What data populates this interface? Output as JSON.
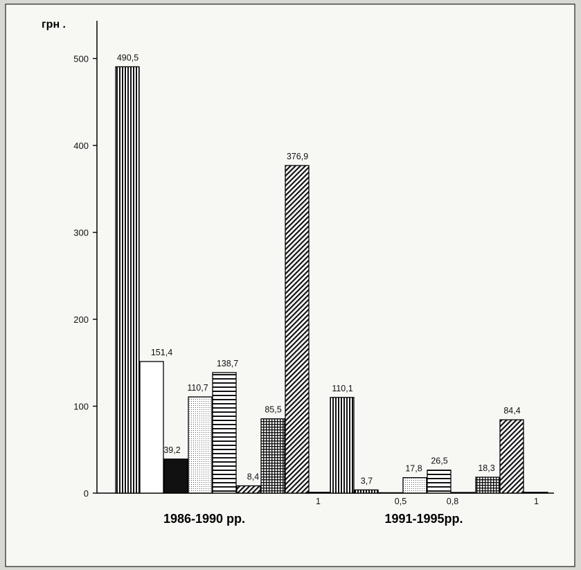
{
  "chart_data": {
    "type": "bar",
    "ylabel": "грн .",
    "ylim": [
      0,
      500
    ],
    "yticks": [
      "0",
      "100",
      "200",
      "300",
      "400",
      "500"
    ],
    "categories": [
      "1986-1990 рр.",
      "1991-1995рр."
    ],
    "groups": [
      {
        "category": "1986-1990 рр.",
        "bars": [
          {
            "value": 490.5,
            "label": "490,5"
          },
          {
            "value": 151.4,
            "label": "151,4"
          },
          {
            "value": 39.2,
            "label": "39,2"
          },
          {
            "value": 110.7,
            "label": "110,7"
          },
          {
            "value": 138.7,
            "label": "138,7"
          },
          {
            "value": 8.4,
            "label": "8,4"
          },
          {
            "value": 85.5,
            "label": "85,5"
          },
          {
            "value": 376.9,
            "label": "376,9"
          }
        ]
      },
      {
        "category": "1991-1995рр.",
        "bars": [
          {
            "value": 1,
            "label": "1"
          },
          {
            "value": 110.1,
            "label": "110,1"
          },
          {
            "value": 3.7,
            "label": "3,7"
          },
          {
            "value": 0.5,
            "label": "0,5"
          },
          {
            "value": 17.8,
            "label": "17,8"
          },
          {
            "value": 26.5,
            "label": "26,5"
          },
          {
            "value": 0.8,
            "label": "0,8"
          },
          {
            "value": 18.3,
            "label": "18,3"
          },
          {
            "value": 84.4,
            "label": "84,4"
          },
          {
            "value": 1,
            "label": "1"
          }
        ]
      }
    ],
    "grid": false
  }
}
